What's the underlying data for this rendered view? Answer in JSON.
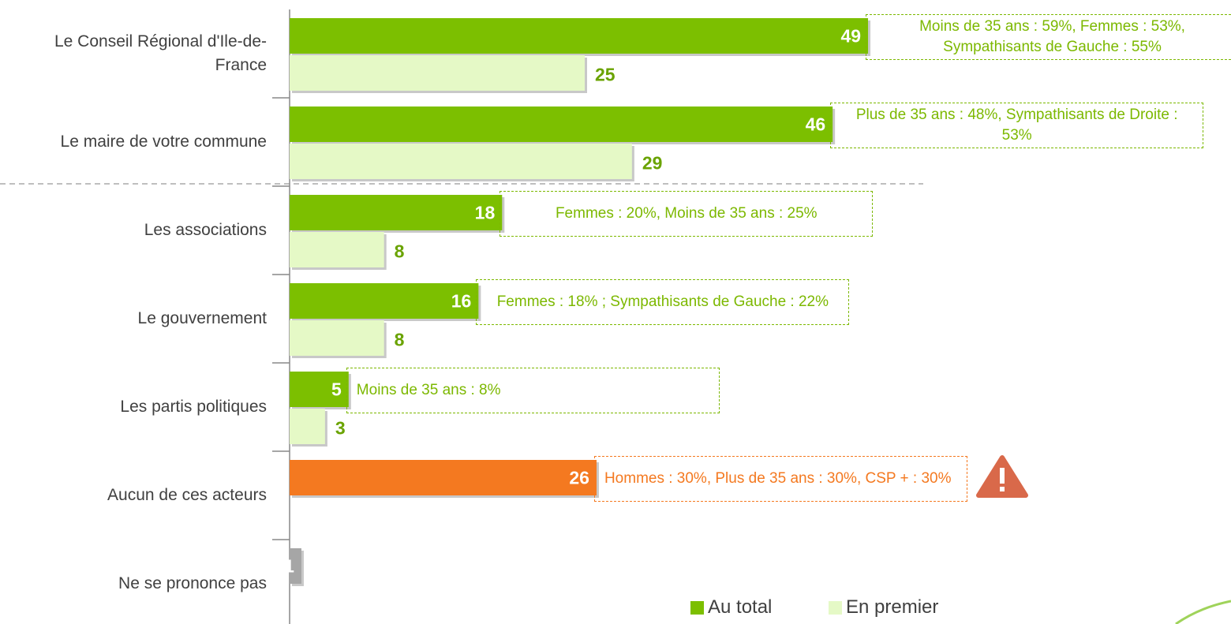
{
  "chart_data": {
    "type": "bar",
    "orientation": "horizontal",
    "categories": [
      "Le Conseil Régional d'Ile-de-France",
      "Le maire de votre commune",
      "Les associations",
      "Le gouvernement",
      "Les partis politiques",
      "Aucun de ces acteurs",
      "Ne se prononce pas"
    ],
    "series": [
      {
        "name": "Au total",
        "color": "#7cbf00",
        "colors": [
          "#7cbf00",
          "#7cbf00",
          "#7cbf00",
          "#7cbf00",
          "#7cbf00",
          "#f47920",
          "#a6a6a6"
        ],
        "values": [
          49,
          46,
          18,
          16,
          5,
          26,
          1
        ]
      },
      {
        "name": "En premier",
        "color": "#e5f9c6",
        "values": [
          25,
          29,
          8,
          8,
          3,
          null,
          null
        ]
      }
    ],
    "annotations": [
      "Moins de 35 ans : 59%, Femmes : 53%, Sympathisants de Gauche : 55%",
      "Plus de 35 ans : 48%, Sympathisants de Droite : 53%",
      "Femmes : 20%, Moins de 35 ans : 25%",
      "Femmes : 18% ; Sympathisants de Gauche : 22%",
      "Moins de 35 ans : 8%",
      "Hommes : 30%, Plus de 35 ans : 30%, CSP + : 30%",
      null
    ],
    "annotation_colors": [
      "#7cb800",
      "#7cb800",
      "#7cb800",
      "#7cb800",
      "#7cb800",
      "#f47920",
      null
    ]
  }
}
